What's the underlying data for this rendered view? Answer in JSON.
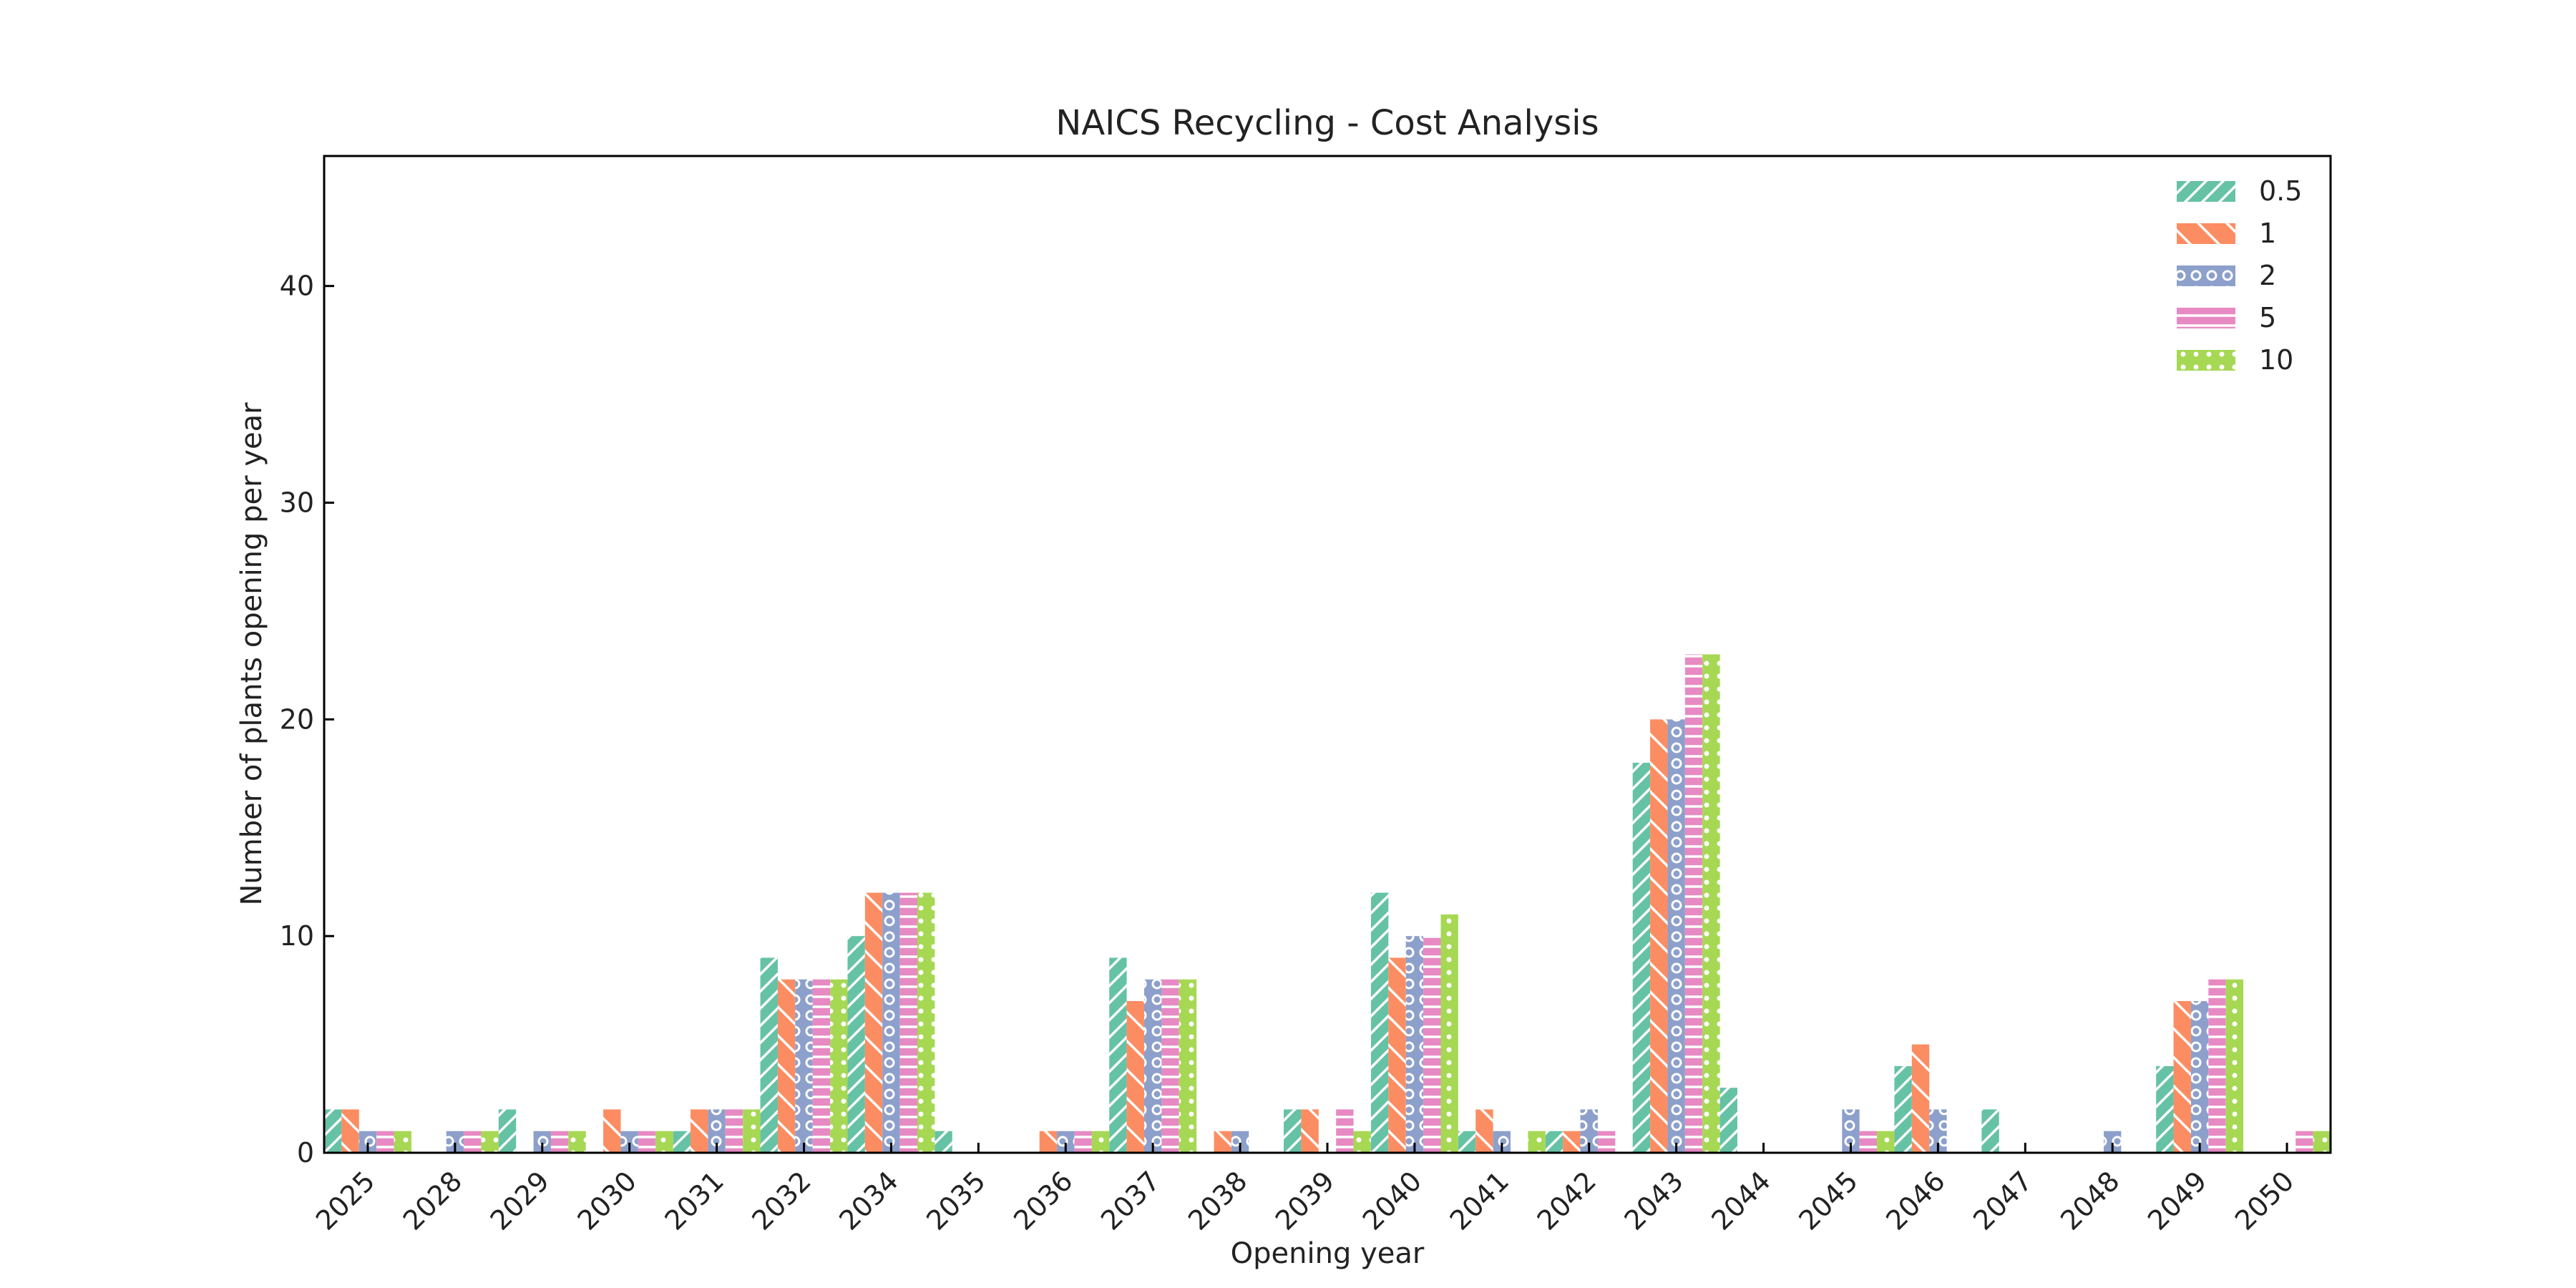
{
  "chart_data": {
    "type": "bar",
    "title": "NAICS Recycling - Cost Analysis",
    "xlabel": "Opening year",
    "ylabel": "Number of plants opening per year",
    "ylim": [
      0,
      46
    ],
    "yticks": [
      0,
      10,
      20,
      30,
      40
    ],
    "grid": false,
    "legend_position": "top-right",
    "categories": [
      "2025",
      "2028",
      "2029",
      "2030",
      "2031",
      "2032",
      "2034",
      "2035",
      "2036",
      "2037",
      "2038",
      "2039",
      "2040",
      "2041",
      "2042",
      "2043",
      "2044",
      "2045",
      "2046",
      "2047",
      "2048",
      "2049",
      "2050"
    ],
    "series": [
      {
        "name": "0.5",
        "color": "#66c2a5",
        "pattern": "diagonal-stripes",
        "values": [
          2,
          0,
          2,
          0,
          1,
          9,
          10,
          1,
          0,
          9,
          0,
          2,
          12,
          1,
          1,
          18,
          3,
          0,
          4,
          2,
          0,
          4,
          0
        ]
      },
      {
        "name": "1",
        "color": "#fc8d62",
        "pattern": "back-diagonal",
        "values": [
          2,
          0,
          0,
          2,
          2,
          8,
          12,
          0,
          1,
          7,
          1,
          2,
          9,
          2,
          1,
          20,
          0,
          0,
          5,
          0,
          0,
          7,
          0
        ]
      },
      {
        "name": "2",
        "color": "#8da0cb",
        "pattern": "circles",
        "values": [
          1,
          1,
          1,
          1,
          2,
          8,
          12,
          0,
          1,
          8,
          1,
          0,
          10,
          1,
          2,
          20,
          0,
          2,
          2,
          0,
          1,
          7,
          0
        ]
      },
      {
        "name": "5",
        "color": "#e78ac3",
        "pattern": "horizontal-lines",
        "values": [
          1,
          1,
          1,
          1,
          2,
          8,
          12,
          0,
          1,
          8,
          0,
          2,
          10,
          0,
          1,
          23,
          0,
          1,
          0,
          0,
          0,
          8,
          1
        ]
      },
      {
        "name": "10",
        "color": "#a6d854",
        "pattern": "dots",
        "values": [
          1,
          1,
          1,
          1,
          2,
          8,
          12,
          0,
          1,
          8,
          0,
          1,
          11,
          1,
          0,
          23,
          0,
          1,
          0,
          0,
          0,
          8,
          1
        ]
      }
    ]
  }
}
